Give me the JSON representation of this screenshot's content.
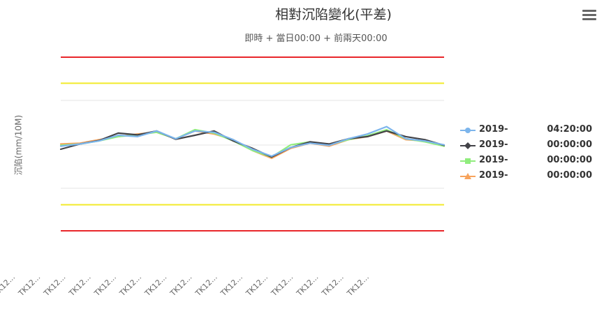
{
  "chart_data": {
    "type": "line",
    "title": "相對沉陷變化(平差)",
    "subtitle": "即時 + 當日00:00 + 前兩天00:00",
    "ylabel": "沉陷(mm/10M)",
    "grid": true,
    "tick_labels": [
      "TK12...",
      "TK12...",
      "TK12...",
      "TK12...",
      "TK12...",
      "TK12...",
      "TK12...",
      "TK12...",
      "TK12...",
      "TK12...",
      "TK12...",
      "TK12...",
      "TK12...",
      "TK12...",
      "TK12..."
    ],
    "reference_lines": [
      {
        "kind": "red",
        "value": 2.0
      },
      {
        "kind": "yellow",
        "value": 1.4
      },
      {
        "kind": "yellow",
        "value": -1.4
      },
      {
        "kind": "red",
        "value": -2.0
      }
    ],
    "ylim": [
      -2.0,
      2.0
    ],
    "x_positions": [
      0,
      1.5,
      3,
      4.5,
      6,
      7.5,
      9,
      10.5,
      12,
      13.5,
      15,
      16.5,
      18,
      19.5,
      21,
      22.5,
      24,
      25.5,
      27,
      28.5,
      30
    ],
    "series": [
      {
        "name": "2019-",
        "time": "04:20:00",
        "color": "#7cb5ec",
        "marker": "circle",
        "values": [
          -0.05,
          0.0,
          0.07,
          0.2,
          0.17,
          0.3,
          0.12,
          0.3,
          0.27,
          0.1,
          -0.12,
          -0.28,
          -0.08,
          0.02,
          -0.03,
          0.12,
          0.23,
          0.4,
          0.12,
          0.07,
          -0.02
        ]
      },
      {
        "name": "2019-",
        "time": "00:00:00",
        "color": "#434348",
        "marker": "diamond",
        "values": [
          -0.12,
          0.0,
          0.08,
          0.25,
          0.21,
          0.3,
          0.11,
          0.2,
          0.3,
          0.07,
          -0.1,
          -0.3,
          -0.08,
          0.05,
          0.0,
          0.12,
          0.17,
          0.3,
          0.17,
          0.1,
          -0.03
        ]
      },
      {
        "name": "2019-",
        "time": "00:00:00",
        "color": "#90ed7d",
        "marker": "square",
        "values": [
          -0.03,
          0.0,
          0.07,
          0.17,
          0.21,
          0.27,
          0.12,
          0.33,
          0.25,
          0.07,
          -0.15,
          -0.3,
          -0.02,
          0.05,
          -0.02,
          0.1,
          0.19,
          0.33,
          0.12,
          0.05,
          -0.05
        ]
      },
      {
        "name": "2019-",
        "time": "00:00:00",
        "color": "#f7a35c",
        "marker": "triangle",
        "values": [
          0.0,
          0.02,
          0.1,
          0.17,
          0.23,
          0.27,
          0.12,
          0.3,
          0.23,
          0.1,
          -0.15,
          -0.33,
          -0.1,
          0.02,
          -0.05,
          0.1,
          0.17,
          0.3,
          0.1,
          0.07,
          -0.05
        ]
      }
    ]
  }
}
